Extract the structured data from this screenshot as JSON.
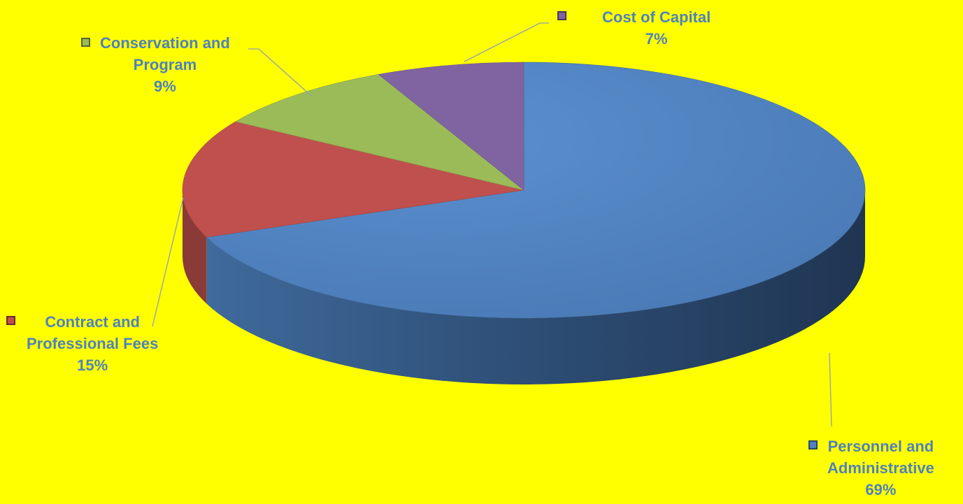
{
  "chart_data": {
    "type": "pie",
    "style": "3d-exploded",
    "background": "#ffff00",
    "label_color": "#4f81bd",
    "slices": [
      {
        "name": "Personnel and Administrative",
        "lines": [
          "Personnel and",
          "Administrative"
        ],
        "value": 69,
        "pct_label": "69%",
        "color": "#4f81bd"
      },
      {
        "name": "Contract and Professional Fees",
        "lines": [
          "Contract and",
          "Professional Fees"
        ],
        "value": 15,
        "pct_label": "15%",
        "color": "#c0504d"
      },
      {
        "name": "Conservation and Program",
        "lines": [
          "Conservation and",
          "Program"
        ],
        "value": 9,
        "pct_label": "9%",
        "color": "#9bbb59"
      },
      {
        "name": "Cost of Capital",
        "lines": [
          "Cost of Capital"
        ],
        "value": 7,
        "pct_label": "7%",
        "color": "#8064a2"
      }
    ]
  }
}
